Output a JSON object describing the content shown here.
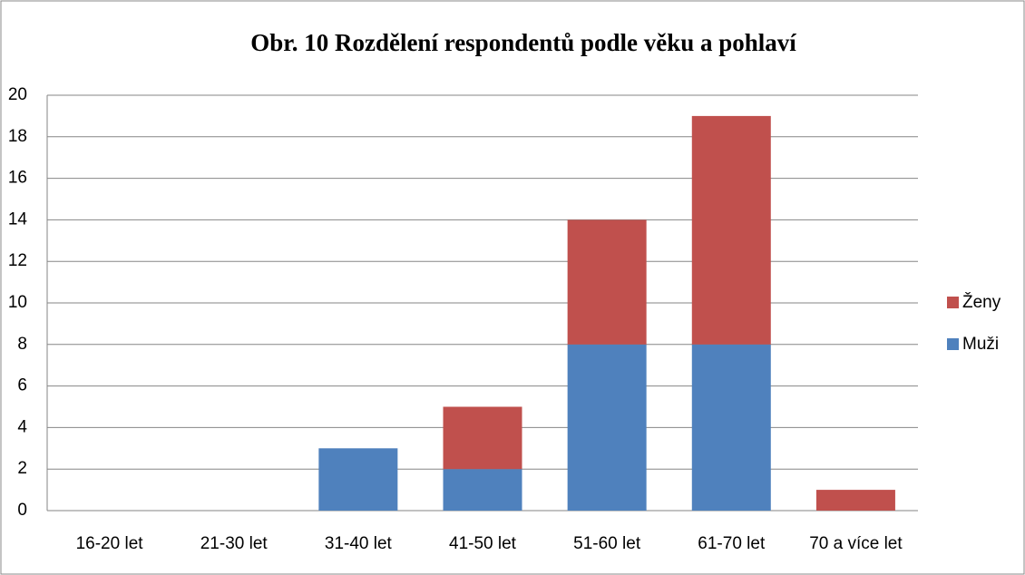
{
  "chart_data": {
    "type": "stacked_bar",
    "title": "Obr. 10 Rozdělení respondentů podle věku a pohlaví",
    "categories": [
      "16-20 let",
      "21-30 let",
      "31-40 let",
      "41-50 let",
      "51-60 let",
      "61-70 let",
      "70 a více let"
    ],
    "series": [
      {
        "name": "Muži",
        "color": "#4f81bd",
        "values": [
          0,
          0,
          3,
          2,
          8,
          8,
          0
        ]
      },
      {
        "name": "Ženy",
        "color": "#c0504d",
        "values": [
          0,
          0,
          0,
          3,
          6,
          11,
          1
        ]
      }
    ],
    "ylim": [
      0,
      20
    ],
    "yticks": [
      0,
      2,
      4,
      6,
      8,
      10,
      12,
      14,
      16,
      18,
      20
    ],
    "grid": true,
    "legend": "right"
  }
}
